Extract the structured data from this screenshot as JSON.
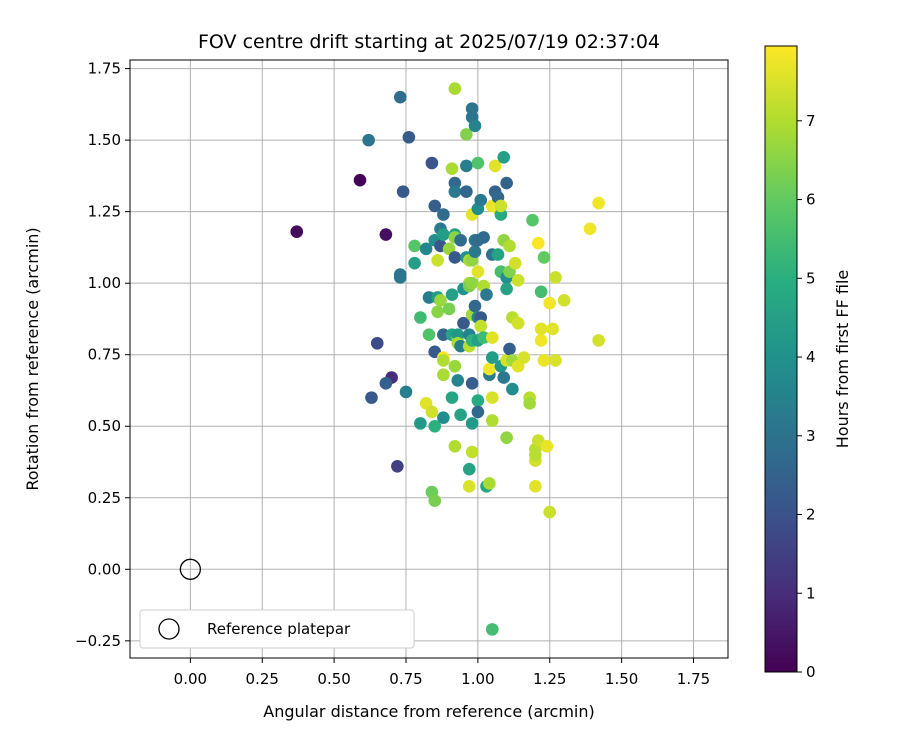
{
  "chart_data": {
    "type": "scatter",
    "title": "FOV centre drift starting at 2025/07/19 02:37:04",
    "xlabel": "Angular distance from reference (arcmin)",
    "ylabel": "Rotation from reference (arcmin)",
    "xlim": [
      -0.21,
      1.87
    ],
    "ylim": [
      -0.31,
      1.78
    ],
    "xticks": [
      0.0,
      0.25,
      0.5,
      0.75,
      1.0,
      1.25,
      1.5,
      1.75
    ],
    "xtick_labels": [
      "0.00",
      "0.25",
      "0.50",
      "0.75",
      "1.00",
      "1.25",
      "1.50",
      "1.75"
    ],
    "yticks": [
      -0.25,
      0.0,
      0.25,
      0.5,
      0.75,
      1.0,
      1.25,
      1.5,
      1.75
    ],
    "ytick_labels": [
      "−0.25",
      "0.00",
      "0.25",
      "0.50",
      "0.75",
      "1.00",
      "1.25",
      "1.50",
      "1.75"
    ],
    "grid": true,
    "colormap": "viridis",
    "colorbar": {
      "label": "Hours from first FF file",
      "range": [
        0,
        7.95
      ],
      "ticks": [
        0,
        1,
        2,
        3,
        4,
        5,
        6,
        7
      ],
      "tick_labels": [
        "0",
        "1",
        "2",
        "3",
        "4",
        "5",
        "6",
        "7"
      ]
    },
    "reference": {
      "x": 0.0,
      "y": 0.0,
      "label": "Reference platepar"
    },
    "legend_position": "lower-left",
    "points": [
      {
        "x": 0.37,
        "y": 1.18,
        "h": 0.2
      },
      {
        "x": 0.59,
        "y": 1.36,
        "h": 0.1
      },
      {
        "x": 0.68,
        "y": 1.17,
        "h": 0.3
      },
      {
        "x": 0.7,
        "y": 0.67,
        "h": 1.0
      },
      {
        "x": 0.72,
        "y": 0.36,
        "h": 1.5
      },
      {
        "x": 0.65,
        "y": 0.79,
        "h": 1.8
      },
      {
        "x": 0.63,
        "y": 0.6,
        "h": 2.2
      },
      {
        "x": 0.68,
        "y": 0.65,
        "h": 2.4
      },
      {
        "x": 0.74,
        "y": 1.32,
        "h": 2.2
      },
      {
        "x": 0.73,
        "y": 1.65,
        "h": 2.8
      },
      {
        "x": 0.62,
        "y": 1.5,
        "h": 3.0
      },
      {
        "x": 0.76,
        "y": 1.51,
        "h": 2.3
      },
      {
        "x": 0.84,
        "y": 1.42,
        "h": 2.1
      },
      {
        "x": 0.73,
        "y": 1.02,
        "h": 3.3
      },
      {
        "x": 0.73,
        "y": 1.03,
        "h": 3.1
      },
      {
        "x": 0.75,
        "y": 0.62,
        "h": 3.4
      },
      {
        "x": 0.78,
        "y": 1.13,
        "h": 5.8
      },
      {
        "x": 0.78,
        "y": 1.07,
        "h": 4.5
      },
      {
        "x": 0.8,
        "y": 0.88,
        "h": 5.4
      },
      {
        "x": 0.8,
        "y": 0.51,
        "h": 4.3
      },
      {
        "x": 0.82,
        "y": 1.12,
        "h": 3.6
      },
      {
        "x": 0.83,
        "y": 0.95,
        "h": 3.3
      },
      {
        "x": 0.82,
        "y": 0.58,
        "h": 7.6
      },
      {
        "x": 0.83,
        "y": 0.82,
        "h": 5.7
      },
      {
        "x": 0.84,
        "y": 0.27,
        "h": 6.1
      },
      {
        "x": 0.84,
        "y": 0.55,
        "h": 7.4
      },
      {
        "x": 0.85,
        "y": 0.24,
        "h": 6.3
      },
      {
        "x": 0.85,
        "y": 1.27,
        "h": 2.4
      },
      {
        "x": 0.85,
        "y": 1.15,
        "h": 3.9
      },
      {
        "x": 0.85,
        "y": 0.5,
        "h": 5.0
      },
      {
        "x": 0.85,
        "y": 0.76,
        "h": 2.2
      },
      {
        "x": 0.86,
        "y": 0.95,
        "h": 4.4
      },
      {
        "x": 0.86,
        "y": 0.9,
        "h": 6.5
      },
      {
        "x": 0.86,
        "y": 1.08,
        "h": 7.3
      },
      {
        "x": 0.87,
        "y": 1.19,
        "h": 3.2
      },
      {
        "x": 0.88,
        "y": 1.24,
        "h": 2.8
      },
      {
        "x": 0.87,
        "y": 1.13,
        "h": 2.1
      },
      {
        "x": 0.88,
        "y": 1.17,
        "h": 4.4
      },
      {
        "x": 0.87,
        "y": 0.94,
        "h": 6.7
      },
      {
        "x": 0.88,
        "y": 0.82,
        "h": 2.6
      },
      {
        "x": 0.88,
        "y": 0.74,
        "h": 7.9
      },
      {
        "x": 0.88,
        "y": 0.73,
        "h": 7.0
      },
      {
        "x": 0.88,
        "y": 0.68,
        "h": 6.9
      },
      {
        "x": 0.88,
        "y": 0.53,
        "h": 3.8
      },
      {
        "x": 0.9,
        "y": 0.91,
        "h": 6.3
      },
      {
        "x": 0.9,
        "y": 1.12,
        "h": 6.7
      },
      {
        "x": 0.91,
        "y": 0.96,
        "h": 4.5
      },
      {
        "x": 0.91,
        "y": 0.82,
        "h": 4.6
      },
      {
        "x": 0.91,
        "y": 0.6,
        "h": 4.7
      },
      {
        "x": 0.92,
        "y": 0.43,
        "h": 7.0
      },
      {
        "x": 0.91,
        "y": 1.4,
        "h": 6.9
      },
      {
        "x": 0.92,
        "y": 1.35,
        "h": 2.7
      },
      {
        "x": 0.92,
        "y": 1.32,
        "h": 3.2
      },
      {
        "x": 0.92,
        "y": 1.17,
        "h": 4.5
      },
      {
        "x": 0.92,
        "y": 1.16,
        "h": 6.5
      },
      {
        "x": 0.92,
        "y": 1.09,
        "h": 2.2
      },
      {
        "x": 0.92,
        "y": 0.71,
        "h": 6.7
      },
      {
        "x": 0.92,
        "y": 1.68,
        "h": 6.9
      },
      {
        "x": 0.93,
        "y": 0.81,
        "h": 6.8
      },
      {
        "x": 0.93,
        "y": 0.66,
        "h": 3.6
      },
      {
        "x": 0.93,
        "y": 0.82,
        "h": 4.2
      },
      {
        "x": 0.93,
        "y": 0.79,
        "h": 6.9
      },
      {
        "x": 0.94,
        "y": 1.15,
        "h": 2.8
      },
      {
        "x": 0.94,
        "y": 0.54,
        "h": 4.6
      },
      {
        "x": 0.94,
        "y": 0.78,
        "h": 3.4
      },
      {
        "x": 0.95,
        "y": 0.86,
        "h": 2.2
      },
      {
        "x": 0.95,
        "y": 0.98,
        "h": 4.0
      },
      {
        "x": 0.96,
        "y": 1.52,
        "h": 6.4
      },
      {
        "x": 0.96,
        "y": 1.41,
        "h": 3.4
      },
      {
        "x": 0.96,
        "y": 1.32,
        "h": 2.6
      },
      {
        "x": 0.96,
        "y": 1.09,
        "h": 4.0
      },
      {
        "x": 0.97,
        "y": 1.08,
        "h": 6.9
      },
      {
        "x": 0.97,
        "y": 1.0,
        "h": 6.9
      },
      {
        "x": 0.97,
        "y": 0.99,
        "h": 6.3
      },
      {
        "x": 0.97,
        "y": 0.82,
        "h": 3.5
      },
      {
        "x": 0.97,
        "y": 0.78,
        "h": 7.1
      },
      {
        "x": 0.97,
        "y": 0.35,
        "h": 4.6
      },
      {
        "x": 0.97,
        "y": 0.29,
        "h": 7.5
      },
      {
        "x": 0.98,
        "y": 1.61,
        "h": 3.0
      },
      {
        "x": 0.98,
        "y": 1.58,
        "h": 3.1
      },
      {
        "x": 0.98,
        "y": 1.24,
        "h": 7.6
      },
      {
        "x": 0.98,
        "y": 1.08,
        "h": 6.6
      },
      {
        "x": 0.98,
        "y": 1.0,
        "h": 6.6
      },
      {
        "x": 0.98,
        "y": 0.89,
        "h": 6.8
      },
      {
        "x": 0.98,
        "y": 0.8,
        "h": 5.1
      },
      {
        "x": 0.98,
        "y": 0.65,
        "h": 2.4
      },
      {
        "x": 0.98,
        "y": 0.51,
        "h": 4.3
      },
      {
        "x": 0.98,
        "y": 0.41,
        "h": 7.2
      },
      {
        "x": 0.99,
        "y": 1.55,
        "h": 3.5
      },
      {
        "x": 0.99,
        "y": 1.15,
        "h": 3.0
      },
      {
        "x": 0.99,
        "y": 1.11,
        "h": 3.2
      },
      {
        "x": 0.99,
        "y": 0.92,
        "h": 2.7
      },
      {
        "x": 1.0,
        "y": 1.42,
        "h": 5.7
      },
      {
        "x": 1.0,
        "y": 1.26,
        "h": 3.8
      },
      {
        "x": 1.0,
        "y": 1.15,
        "h": 2.8
      },
      {
        "x": 1.0,
        "y": 1.04,
        "h": 7.6
      },
      {
        "x": 1.0,
        "y": 0.88,
        "h": 3.5
      },
      {
        "x": 1.0,
        "y": 0.8,
        "h": 4.5
      },
      {
        "x": 1.0,
        "y": 0.59,
        "h": 4.8
      },
      {
        "x": 1.0,
        "y": 0.55,
        "h": 2.7
      },
      {
        "x": 1.01,
        "y": 1.29,
        "h": 3.2
      },
      {
        "x": 1.01,
        "y": 0.88,
        "h": 2.3
      },
      {
        "x": 1.01,
        "y": 0.85,
        "h": 7.2
      },
      {
        "x": 1.02,
        "y": 0.81,
        "h": 5.4
      },
      {
        "x": 1.02,
        "y": 1.16,
        "h": 2.8
      },
      {
        "x": 1.02,
        "y": 0.99,
        "h": 7.0
      },
      {
        "x": 1.03,
        "y": 0.96,
        "h": 3.2
      },
      {
        "x": 1.03,
        "y": 0.29,
        "h": 4.7
      },
      {
        "x": 1.04,
        "y": 0.3,
        "h": 6.9
      },
      {
        "x": 1.04,
        "y": 0.68,
        "h": 3.3
      },
      {
        "x": 1.04,
        "y": 0.7,
        "h": 7.8
      },
      {
        "x": 1.05,
        "y": 1.27,
        "h": 7.7
      },
      {
        "x": 1.05,
        "y": 1.1,
        "h": 3.0
      },
      {
        "x": 1.05,
        "y": 0.81,
        "h": 7.6
      },
      {
        "x": 1.05,
        "y": 0.74,
        "h": 4.4
      },
      {
        "x": 1.05,
        "y": 0.6,
        "h": 7.5
      },
      {
        "x": 1.05,
        "y": 0.52,
        "h": 7.0
      },
      {
        "x": 1.05,
        "y": -0.21,
        "h": 5.5
      },
      {
        "x": 1.06,
        "y": 1.32,
        "h": 2.5
      },
      {
        "x": 1.06,
        "y": 1.41,
        "h": 7.6
      },
      {
        "x": 1.07,
        "y": 1.26,
        "h": 7.8
      },
      {
        "x": 1.07,
        "y": 1.1,
        "h": 4.6
      },
      {
        "x": 1.07,
        "y": 1.3,
        "h": 2.6
      },
      {
        "x": 1.08,
        "y": 1.24,
        "h": 4.8
      },
      {
        "x": 1.08,
        "y": 1.27,
        "h": 7.3
      },
      {
        "x": 1.08,
        "y": 0.71,
        "h": 4.2
      },
      {
        "x": 1.08,
        "y": 1.04,
        "h": 5.5
      },
      {
        "x": 1.09,
        "y": 1.44,
        "h": 4.5
      },
      {
        "x": 1.09,
        "y": 1.15,
        "h": 6.6
      },
      {
        "x": 1.09,
        "y": 0.67,
        "h": 3.2
      },
      {
        "x": 1.1,
        "y": 0.46,
        "h": 6.6
      },
      {
        "x": 1.1,
        "y": 1.35,
        "h": 2.5
      },
      {
        "x": 1.1,
        "y": 1.02,
        "h": 3.9
      },
      {
        "x": 1.1,
        "y": 0.73,
        "h": 7.4
      },
      {
        "x": 1.1,
        "y": 0.98,
        "h": 4.6
      },
      {
        "x": 1.11,
        "y": 1.13,
        "h": 7.0
      },
      {
        "x": 1.11,
        "y": 0.77,
        "h": 2.4
      },
      {
        "x": 1.11,
        "y": 1.04,
        "h": 6.4
      },
      {
        "x": 1.12,
        "y": 0.63,
        "h": 3.8
      },
      {
        "x": 1.12,
        "y": 0.88,
        "h": 7.1
      },
      {
        "x": 1.12,
        "y": 0.73,
        "h": 6.8
      },
      {
        "x": 1.13,
        "y": 1.07,
        "h": 7.4
      },
      {
        "x": 1.14,
        "y": 0.86,
        "h": 7.4
      },
      {
        "x": 1.14,
        "y": 0.71,
        "h": 7.6
      },
      {
        "x": 1.14,
        "y": 1.01,
        "h": 7.3
      },
      {
        "x": 1.16,
        "y": 0.74,
        "h": 7.5
      },
      {
        "x": 1.18,
        "y": 0.6,
        "h": 7.1
      },
      {
        "x": 1.18,
        "y": 0.58,
        "h": 6.8
      },
      {
        "x": 1.19,
        "y": 1.22,
        "h": 5.8
      },
      {
        "x": 1.2,
        "y": 0.42,
        "h": 7.1
      },
      {
        "x": 1.2,
        "y": 0.38,
        "h": 7.4
      },
      {
        "x": 1.2,
        "y": 0.29,
        "h": 7.6
      },
      {
        "x": 1.2,
        "y": 0.4,
        "h": 7.1
      },
      {
        "x": 1.21,
        "y": 1.14,
        "h": 7.9
      },
      {
        "x": 1.21,
        "y": 0.45,
        "h": 7.3
      },
      {
        "x": 1.22,
        "y": 0.97,
        "h": 5.5
      },
      {
        "x": 1.22,
        "y": 0.84,
        "h": 7.6
      },
      {
        "x": 1.22,
        "y": 0.8,
        "h": 7.8
      },
      {
        "x": 1.23,
        "y": 1.09,
        "h": 6.0
      },
      {
        "x": 1.23,
        "y": 0.73,
        "h": 7.7
      },
      {
        "x": 1.24,
        "y": 0.43,
        "h": 7.7
      },
      {
        "x": 1.25,
        "y": 0.93,
        "h": 7.8
      },
      {
        "x": 1.25,
        "y": 0.2,
        "h": 7.3
      },
      {
        "x": 1.26,
        "y": 0.84,
        "h": 7.6
      },
      {
        "x": 1.27,
        "y": 1.02,
        "h": 7.3
      },
      {
        "x": 1.27,
        "y": 0.73,
        "h": 7.5
      },
      {
        "x": 1.3,
        "y": 0.94,
        "h": 7.4
      },
      {
        "x": 1.39,
        "y": 1.19,
        "h": 7.8
      },
      {
        "x": 1.42,
        "y": 1.28,
        "h": 7.8
      },
      {
        "x": 1.42,
        "y": 0.8,
        "h": 7.4
      }
    ]
  }
}
